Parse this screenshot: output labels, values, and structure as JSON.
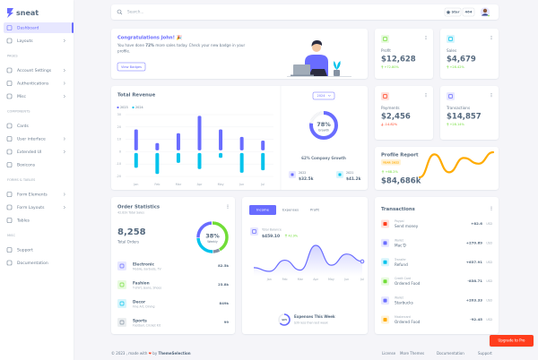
{
  "sidebar": {
    "brand": "sneat",
    "groups": [
      {
        "items": [
          "Dashboard",
          "Layouts"
        ]
      },
      {
        "heading": "PAGES",
        "items": [
          "Account Settings",
          "Authentications",
          "Misc"
        ]
      },
      {
        "heading": "COMPONENTS",
        "items": [
          "Cards",
          "User interface",
          "Extended UI",
          "Boxicons"
        ]
      },
      {
        "heading": "FORMS & TABLES",
        "items": [
          "Form Elements",
          "Form Layouts",
          "Tables"
        ]
      },
      {
        "heading": "MISC",
        "items": [
          "Support",
          "Documentation"
        ]
      }
    ]
  },
  "navbar": {
    "search": "Search...",
    "star": "Star",
    "stars": 464
  },
  "welcome": {
    "title": "Congratulations John! 🎉",
    "message": {
      "before": "You have done ",
      "highlight": "72%",
      "after": " more sales today. Check your new badge in your",
      "last_line": "profile."
    },
    "button": "View Badges"
  },
  "stats": [
    {
      "label": "Profit",
      "amount": "$12,628",
      "change": "+72.80%"
    },
    {
      "label": "Sales",
      "amount": "$4,679",
      "change": "+28.42%"
    },
    {
      "label": "Payments",
      "amount": "$2,456",
      "change": "-14.82%"
    },
    {
      "label": "Transactions",
      "amount": "$14,857",
      "change": "+28.14%"
    }
  ],
  "revenue": {
    "title": "Total Revenue",
    "year_button": "2024",
    "company_growth": "62% Company Growth",
    "years": [
      {
        "year": "2022",
        "amount": "$32.5k"
      },
      {
        "year": "2021",
        "amount": "$41.2k"
      }
    ]
  },
  "profile_report": {
    "title": "Profile Report",
    "badge": "YEAR 2022",
    "change": "+68.2%",
    "amount": "$84,686k"
  },
  "order_statistics": {
    "title": "Order Statistics",
    "subtitle": "42.82k Total Sales",
    "total": "8,258",
    "total_label": "Total Orders",
    "items": [
      {
        "name": "Electronic",
        "desc": "Mobile, Earbuds, TV",
        "amount": "82.5k"
      },
      {
        "name": "Fashion",
        "desc": "T-shirt, Jeans, Shoes",
        "amount": "23.8k"
      },
      {
        "name": "Decor",
        "desc": "Fine Art, Dining",
        "amount": "849k"
      },
      {
        "name": "Sports",
        "desc": "Football, Cricket Kit",
        "amount": "99"
      }
    ]
  },
  "income": {
    "tabs": [
      "Income",
      "Expenses",
      "Profit"
    ],
    "balance_label": "Total Balance",
    "balance": "$459.10",
    "change": "42.9%",
    "week_title": "Expenses This Week",
    "week_text": "$39 less than last week"
  },
  "transactions": {
    "title": "Transactions",
    "rows": [
      {
        "method": "Paypal",
        "desc": "Send money",
        "amount": "+82.6",
        "currency": "USD"
      },
      {
        "method": "Wallet",
        "desc": "Mac'D",
        "amount": "+270.69",
        "currency": "USD"
      },
      {
        "method": "Transfer",
        "desc": "Refund",
        "amount": "+637.91",
        "currency": "USD"
      },
      {
        "method": "Credit Card",
        "desc": "Ordered Food",
        "amount": "-838.71",
        "currency": "USD"
      },
      {
        "method": "Wallet",
        "desc": "Starbucks",
        "amount": "+203.33",
        "currency": "USD"
      },
      {
        "method": "Mastercard",
        "desc": "Ordered Food",
        "amount": "-92.45",
        "currency": "USD"
      }
    ]
  },
  "footer": {
    "copyright": "© 2023 , made with ",
    "heart": "❤",
    "by": " by ",
    "brand": "ThemeSelection",
    "links": [
      "License",
      "More Themes",
      "Documentation",
      "Support"
    ],
    "upgrade": "Upgrade to Pro"
  },
  "chart_data": [
    {
      "type": "bar",
      "categories": [
        "Jan",
        "Feb",
        "Mar",
        "Apr",
        "May",
        "Jun",
        "Jul"
      ],
      "series": [
        {
          "name": "2023",
          "color": "#696cff",
          "values": [
            18,
            7,
            15,
            29,
            18,
            12,
            9
          ]
        },
        {
          "name": "2024",
          "color": "#03c3ec",
          "values": [
            -13,
            -18,
            -9,
            -14,
            -5,
            -17,
            -15
          ]
        }
      ],
      "ylim": [
        -20,
        30
      ],
      "yticks": [
        -20,
        -10,
        0,
        10,
        20,
        30
      ],
      "grid": true
    },
    {
      "type": "radial",
      "values": [
        78
      ],
      "value_labels": [
        "78%"
      ],
      "subtitle": "Growth",
      "color": "#696cff"
    },
    {
      "type": "line",
      "values": [
        110,
        270,
        145,
        245,
        205,
        285
      ],
      "color": "#ffab00"
    },
    {
      "type": "donut",
      "values": [
        85,
        15,
        50,
        50
      ],
      "colors": [
        "#71dd37",
        "#8592a3",
        "#03c3ec",
        "#696cff"
      ],
      "center_label": "38%",
      "center_subtitle": "Weekly"
    },
    {
      "type": "area",
      "categories": [
        null,
        "Jan",
        "Feb",
        "Mar",
        "Apr",
        "May",
        "Jun",
        "Jul"
      ],
      "values": [
        24,
        21,
        30,
        22,
        42,
        26,
        35,
        29
      ],
      "color": "#696cff"
    },
    {
      "type": "radial",
      "values": [
        65
      ],
      "value_labels": [
        "$65"
      ],
      "color": "#696cff"
    }
  ]
}
